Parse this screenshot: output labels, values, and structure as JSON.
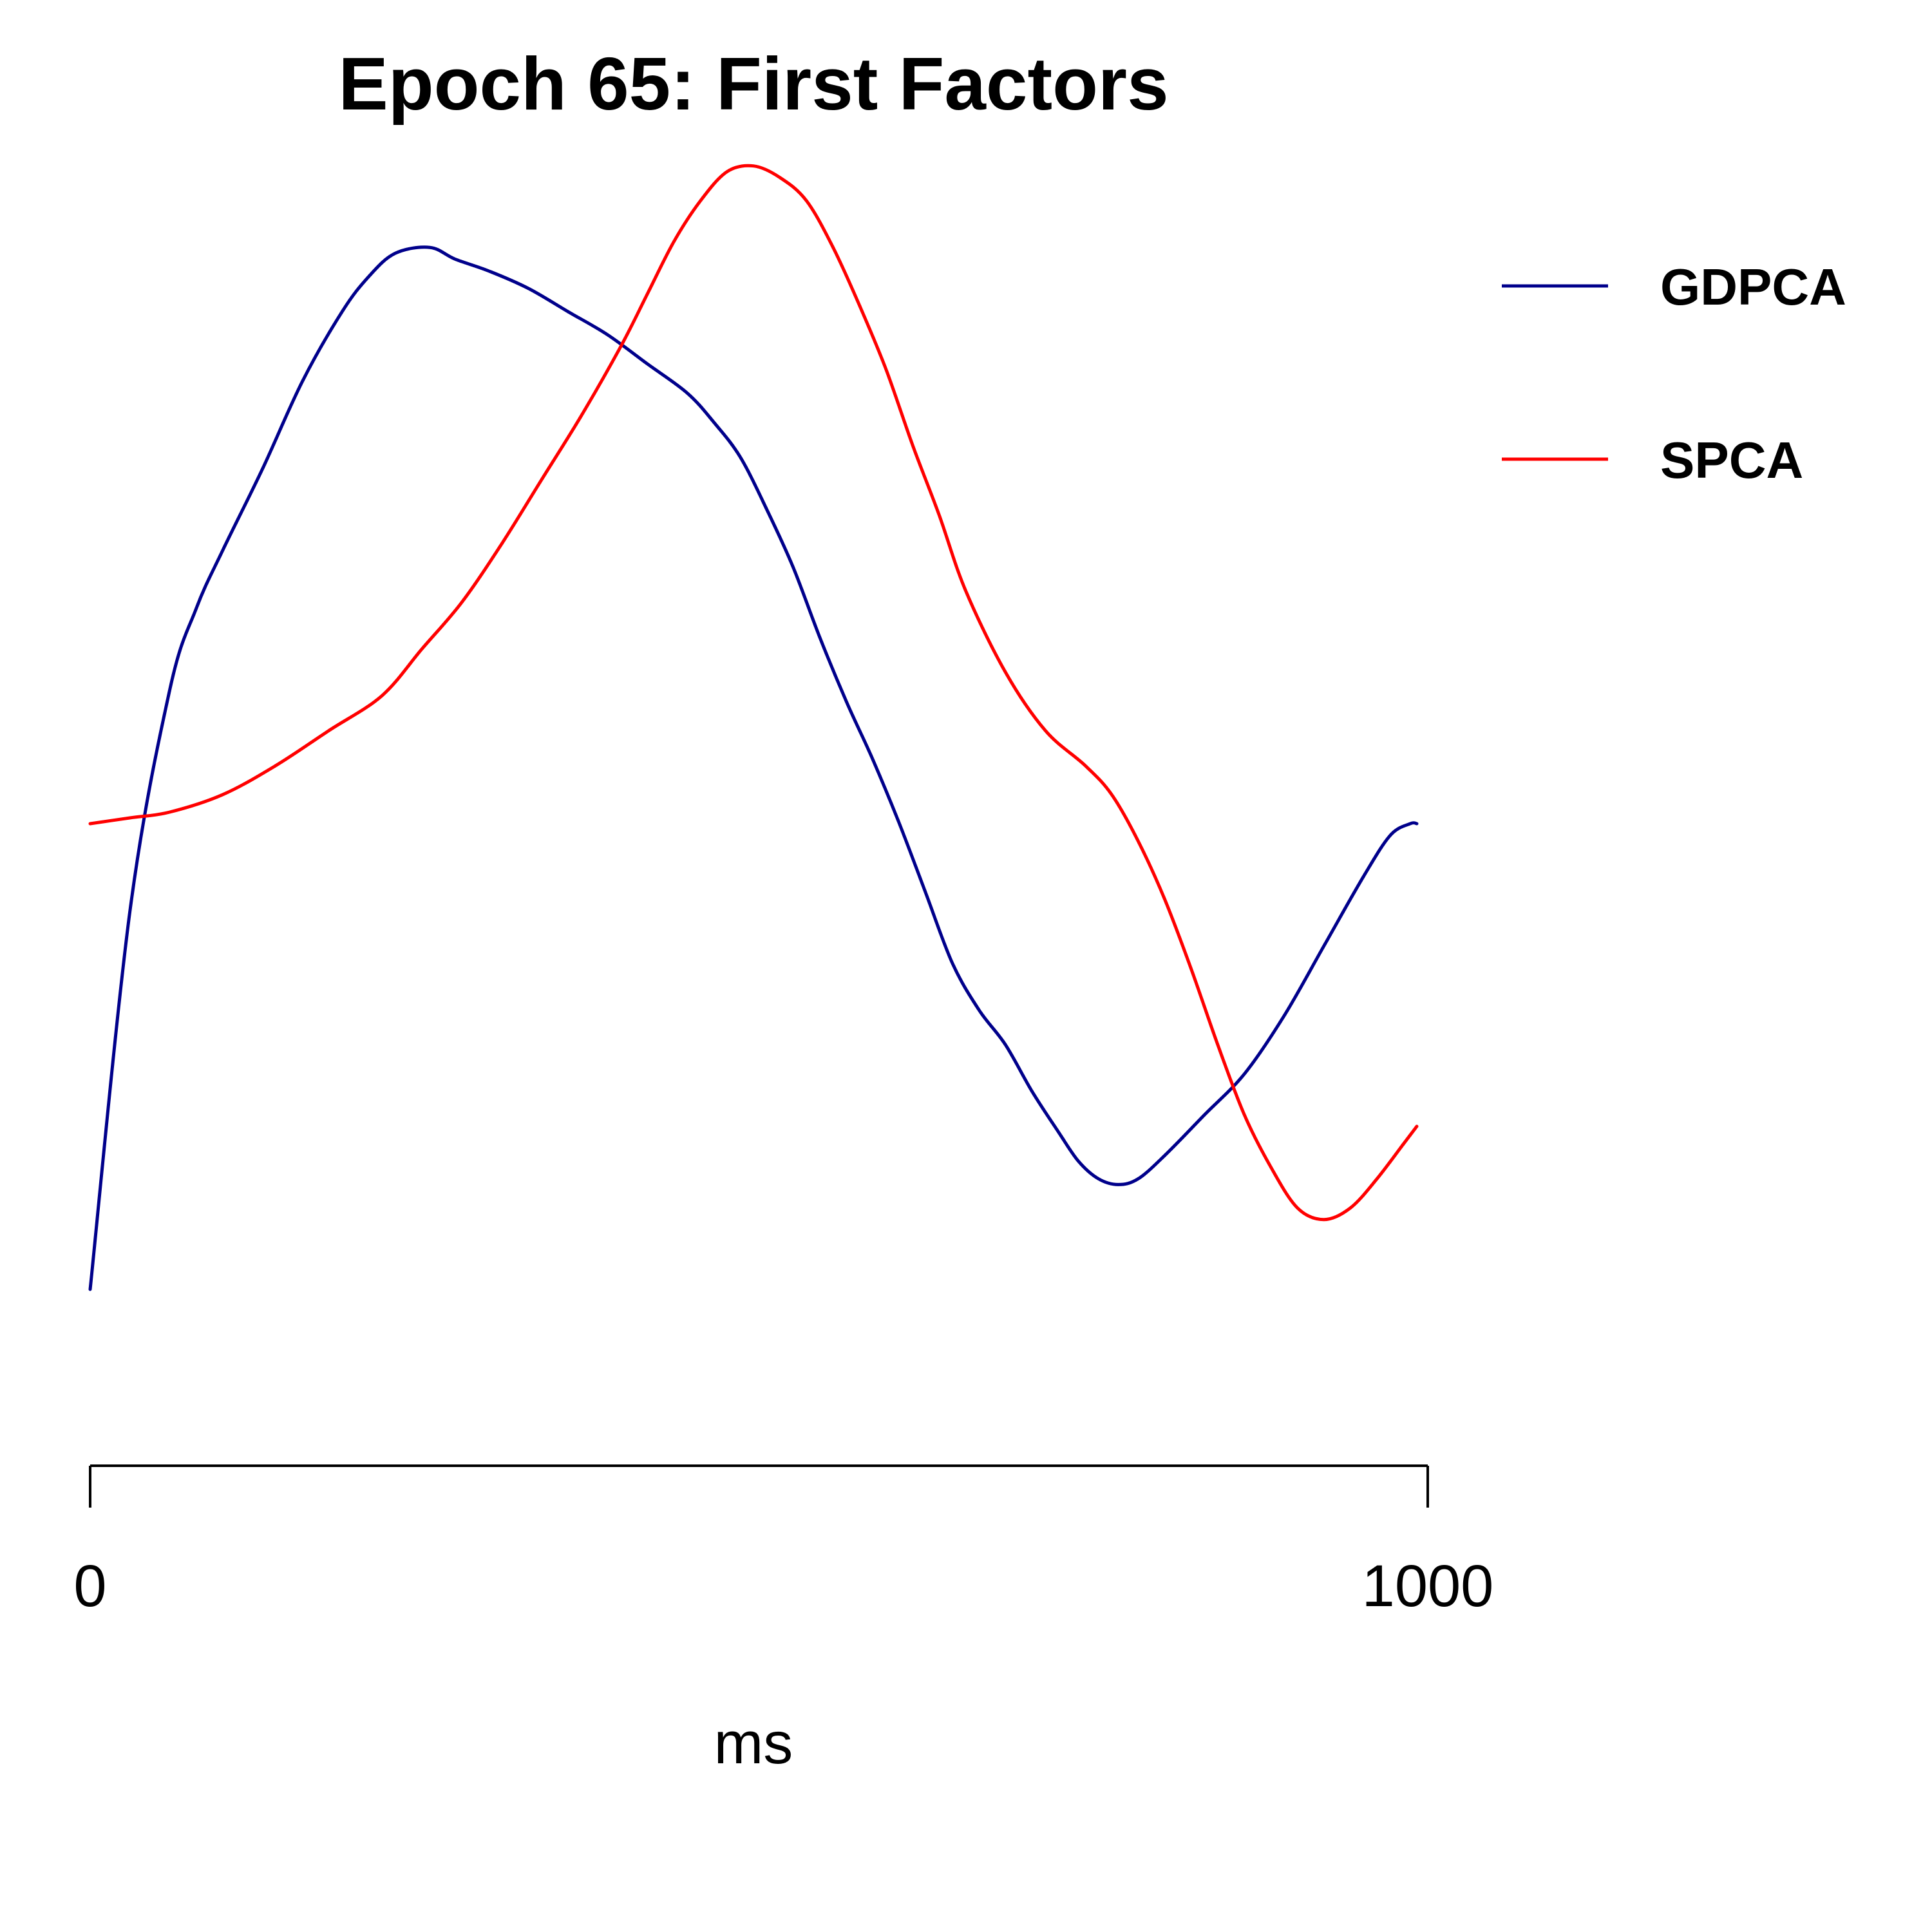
{
  "chart_data": {
    "type": "line",
    "title": "Epoch 65: First Factors",
    "xlabel": "ms",
    "ylabel": "",
    "xlim": [
      0,
      1000
    ],
    "ylim": [
      -1.08,
      1.0
    ],
    "x_ticks": [
      0,
      1000
    ],
    "x_tick_labels": [
      "0",
      "1000"
    ],
    "y_axis_shown": false,
    "grid": false,
    "legend_placement": "top-right, outside plot",
    "series": [
      {
        "name": "GDPCA",
        "color": "#00008B",
        "points": [
          [
            0,
            -0.85
          ],
          [
            30,
            -0.2
          ],
          [
            60,
            0.18
          ],
          [
            80,
            0.32
          ],
          [
            100,
            0.42
          ],
          [
            130,
            0.56
          ],
          [
            160,
            0.71
          ],
          [
            190,
            0.83
          ],
          [
            210,
            0.89
          ],
          [
            230,
            0.93
          ],
          [
            256,
            0.94
          ],
          [
            275,
            0.92
          ],
          [
            300,
            0.9
          ],
          [
            330,
            0.87
          ],
          [
            360,
            0.83
          ],
          [
            390,
            0.79
          ],
          [
            420,
            0.74
          ],
          [
            450,
            0.69
          ],
          [
            470,
            0.64
          ],
          [
            490,
            0.58
          ],
          [
            510,
            0.49
          ],
          [
            530,
            0.39
          ],
          [
            550,
            0.27
          ],
          [
            570,
            0.16
          ],
          [
            590,
            0.06
          ],
          [
            610,
            -0.05
          ],
          [
            630,
            -0.17
          ],
          [
            650,
            -0.29
          ],
          [
            670,
            -0.37
          ],
          [
            690,
            -0.43
          ],
          [
            710,
            -0.51
          ],
          [
            730,
            -0.58
          ],
          [
            745,
            -0.63
          ],
          [
            760,
            -0.66
          ],
          [
            775,
            -0.67
          ],
          [
            790,
            -0.66
          ],
          [
            810,
            -0.62
          ],
          [
            840,
            -0.55
          ],
          [
            870,
            -0.48
          ],
          [
            900,
            -0.38
          ],
          [
            930,
            -0.26
          ],
          [
            960,
            -0.14
          ],
          [
            980,
            -0.07
          ],
          [
            995,
            -0.05
          ],
          [
            1000,
            -0.05
          ]
        ]
      },
      {
        "name": "SPCA",
        "color": "#FF0000",
        "points": [
          [
            0,
            -0.05
          ],
          [
            30,
            -0.04
          ],
          [
            60,
            -0.03
          ],
          [
            100,
            0.0
          ],
          [
            140,
            0.05
          ],
          [
            180,
            0.11
          ],
          [
            220,
            0.17
          ],
          [
            250,
            0.25
          ],
          [
            280,
            0.33
          ],
          [
            310,
            0.43
          ],
          [
            340,
            0.54
          ],
          [
            370,
            0.65
          ],
          [
            400,
            0.77
          ],
          [
            420,
            0.86
          ],
          [
            440,
            0.95
          ],
          [
            460,
            1.02
          ],
          [
            480,
            1.07
          ],
          [
            500,
            1.08
          ],
          [
            520,
            1.06
          ],
          [
            540,
            1.02
          ],
          [
            560,
            0.94
          ],
          [
            580,
            0.84
          ],
          [
            600,
            0.73
          ],
          [
            620,
            0.6
          ],
          [
            640,
            0.48
          ],
          [
            660,
            0.35
          ],
          [
            690,
            0.21
          ],
          [
            720,
            0.11
          ],
          [
            750,
            0.05
          ],
          [
            770,
            0.0
          ],
          [
            790,
            -0.08
          ],
          [
            810,
            -0.18
          ],
          [
            830,
            -0.3
          ],
          [
            850,
            -0.43
          ],
          [
            870,
            -0.55
          ],
          [
            890,
            -0.64
          ],
          [
            910,
            -0.71
          ],
          [
            930,
            -0.73
          ],
          [
            950,
            -0.71
          ],
          [
            970,
            -0.66
          ],
          [
            990,
            -0.6
          ],
          [
            1000,
            -0.57
          ]
        ]
      }
    ]
  }
}
